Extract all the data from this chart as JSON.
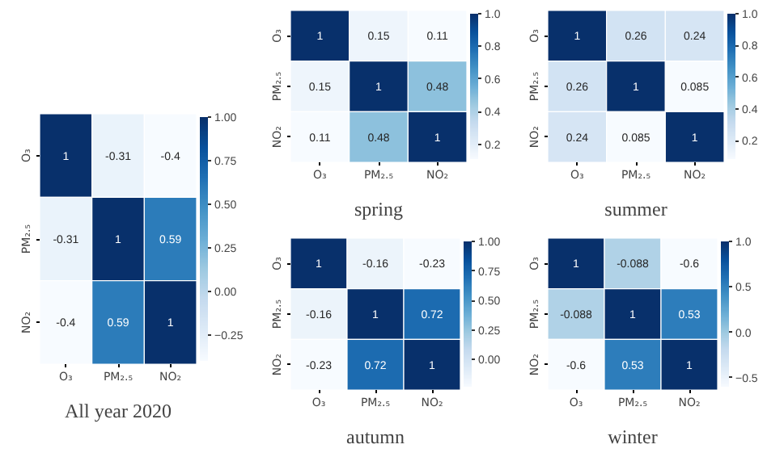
{
  "chart_data": [
    {
      "type": "heatmap",
      "title": "All year 2020",
      "categories": [
        "O₃",
        "PM₂.₅",
        "NO₂"
      ],
      "y_categories": [
        "O₃",
        "PM₂.₅",
        "NO₂"
      ],
      "cells": [
        [
          1,
          -0.31,
          -0.4
        ],
        [
          -0.31,
          1,
          0.59
        ],
        [
          -0.4,
          0.59,
          1
        ]
      ],
      "clim": [
        -0.4,
        1
      ],
      "cticks": [
        {
          "value": 1,
          "label": "1.00"
        },
        {
          "value": 0.75,
          "label": "0.75"
        },
        {
          "value": 0.5,
          "label": "0.50"
        },
        {
          "value": 0.25,
          "label": "0.25"
        },
        {
          "value": 0,
          "label": "0.00"
        },
        {
          "value": -0.25,
          "label": "−0.25"
        }
      ],
      "data_labels": true
    },
    {
      "type": "heatmap",
      "title": "spring",
      "categories": [
        "O₃",
        "PM₂.₅",
        "NO₂"
      ],
      "y_categories": [
        "O₃",
        "PM₂.₅",
        "NO₂"
      ],
      "cells": [
        [
          1,
          0.15,
          0.11
        ],
        [
          0.15,
          1,
          0.48
        ],
        [
          0.11,
          0.48,
          1
        ]
      ],
      "clim": [
        0.11,
        1
      ],
      "cticks": [
        {
          "value": 1,
          "label": "1.0"
        },
        {
          "value": 0.8,
          "label": "0.8"
        },
        {
          "value": 0.6,
          "label": "0.6"
        },
        {
          "value": 0.4,
          "label": "0.4"
        },
        {
          "value": 0.2,
          "label": "0.2"
        }
      ],
      "data_labels": true
    },
    {
      "type": "heatmap",
      "title": "summer",
      "categories": [
        "O₃",
        "PM₂.₅",
        "NO₂"
      ],
      "y_categories": [
        "O₃",
        "PM₂.₅",
        "NO₂"
      ],
      "cells": [
        [
          1,
          0.26,
          0.24
        ],
        [
          0.26,
          1,
          0.085
        ],
        [
          0.24,
          0.085,
          1
        ]
      ],
      "clim": [
        0.085,
        1
      ],
      "cticks": [
        {
          "value": 1,
          "label": "1.0"
        },
        {
          "value": 0.8,
          "label": "0.8"
        },
        {
          "value": 0.6,
          "label": "0.6"
        },
        {
          "value": 0.4,
          "label": "0.4"
        },
        {
          "value": 0.2,
          "label": "0.2"
        }
      ],
      "data_labels": true
    },
    {
      "type": "heatmap",
      "title": "autumn",
      "categories": [
        "O₃",
        "PM₂.₅",
        "NO₂"
      ],
      "y_categories": [
        "O₃",
        "PM₂.₅",
        "NO₂"
      ],
      "cells": [
        [
          1,
          -0.16,
          -0.23
        ],
        [
          -0.16,
          1,
          0.72
        ],
        [
          -0.23,
          0.72,
          1
        ]
      ],
      "clim": [
        -0.23,
        1
      ],
      "cticks": [
        {
          "value": 1,
          "label": "1.00"
        },
        {
          "value": 0.75,
          "label": "0.75"
        },
        {
          "value": 0.5,
          "label": "0.50"
        },
        {
          "value": 0.25,
          "label": "0.25"
        },
        {
          "value": 0,
          "label": "0.00"
        }
      ],
      "data_labels": true
    },
    {
      "type": "heatmap",
      "title": "winter",
      "categories": [
        "O₃",
        "PM₂.₅",
        "NO₂"
      ],
      "y_categories": [
        "O₃",
        "PM₂.₅",
        "NO₂"
      ],
      "cells": [
        [
          1,
          -0.088,
          -0.6
        ],
        [
          -0.088,
          1,
          0.53
        ],
        [
          -0.6,
          0.53,
          1
        ]
      ],
      "clim": [
        -0.6,
        1
      ],
      "cticks": [
        {
          "value": 1,
          "label": "1.0"
        },
        {
          "value": 0.5,
          "label": "0.5"
        },
        {
          "value": 0,
          "label": "0.0"
        },
        {
          "value": -0.5,
          "label": "−0.5"
        }
      ],
      "data_labels": true
    }
  ]
}
